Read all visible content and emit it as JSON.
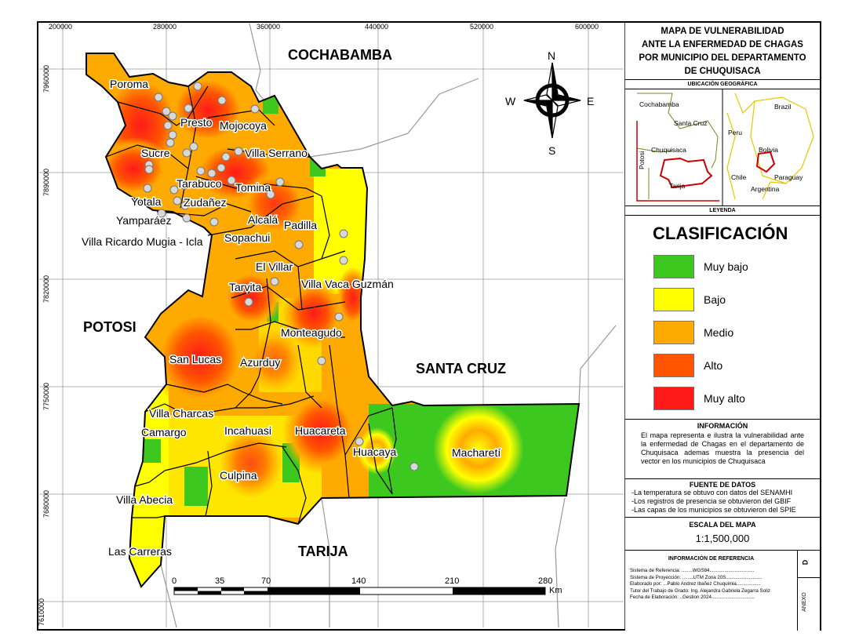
{
  "coords": {
    "top": [
      "200000",
      "280000",
      "360000",
      "440000",
      "520000",
      "600000"
    ],
    "left": [
      "7960000",
      "7890000",
      "7820000",
      "7750000",
      "7680000",
      "7610000"
    ]
  },
  "neighbors": {
    "cochabamba": "COCHABAMBA",
    "potosi": "POTOSI",
    "santa_cruz": "SANTA CRUZ",
    "tarija": "TARIJA"
  },
  "municipios": [
    "Poroma",
    "Presto",
    "Mojocoya",
    "Sucre",
    "Villa Serrano",
    "Tarabuco",
    "Tomina",
    "Yotala",
    "Zudañez",
    "Yamparáez",
    "Alcalá",
    "Padilla",
    "Villa Ricardo Mugia - Icla",
    "Sopachui",
    "El Villar",
    "Tarvita",
    "Villa Vaca Guzmán",
    "Monteagudo",
    "San Lucas",
    "Azurduy",
    "Villa Charcas",
    "Camargo",
    "Incahuasi",
    "Huacareta",
    "Huacaya",
    "Macharetí",
    "Culpina",
    "Villa Abecia",
    "Las Carreras"
  ],
  "compass": {
    "n": "N",
    "s": "S",
    "e": "E",
    "w": "W"
  },
  "scalebar": {
    "ticks": [
      "0",
      "35",
      "70",
      "140",
      "210",
      "280"
    ],
    "unit": "Km"
  },
  "title": [
    "MAPA DE VULNERABILIDAD",
    "ANTE LA ENFERMEDAD DE CHAGAS",
    "POR MUNICIPIO DEL DEPARTAMENTO",
    "DE CHUQUISACA"
  ],
  "location": {
    "header": "UBICACIÓN GEOGRÁFICA",
    "dept_labels": {
      "cochabamba": "Cochabamba",
      "santa_cruz": "Santa Cruz",
      "chuquisaca": "Chuquisaca",
      "potosi": "Potosi",
      "tarija": "Tarija"
    },
    "country_labels": {
      "brazil": "Brazil",
      "peru": "Peru",
      "bolivia": "Bolivia",
      "chile": "Chile",
      "paraguay": "Paraguay",
      "argentina": "Argentina"
    }
  },
  "legend": {
    "header": "LEYENDA",
    "title": "CLASIFICACIÓN",
    "items": [
      {
        "label": "Muy bajo",
        "color": "#3cc81e"
      },
      {
        "label": "Bajo",
        "color": "#ffff00"
      },
      {
        "label": "Medio",
        "color": "#ffaa00"
      },
      {
        "label": "Alto",
        "color": "#ff5500"
      },
      {
        "label": "Muy alto",
        "color": "#ff1a1a"
      }
    ]
  },
  "info": {
    "title": "INFORMACIÓN",
    "text": "El mapa representa e ilustra la vulnerabilidad ante la enfermedad de Chagas en el departamento de Chuquisaca ademas muestra la presencia del vector en los municipios de Chuquisaca"
  },
  "fuente": {
    "title": "FUENTE DE DATOS",
    "lines": [
      "-La temperatura se obtuvo con datos del SENAMHI",
      "-Los registros de presencia se obtuvieron del GBIF",
      "-Las capas de los municipios se obtuvieron del SPIE"
    ]
  },
  "escala": {
    "title": "ESCALA DEL MAPA",
    "value": "1:1,500,000"
  },
  "reference": {
    "title": "INFORMACIÓN DE REFERENCIA",
    "lines": [
      "Sistema de Referencia: ........WGS84.................................",
      "Sistema de Proyección: ........UTM Zona 20S...........................",
      "Elaborado por: ...Pablo Andrez Ibañez Chuquimia..................",
      "Tutor del Trabajo de Grado: Ing. Alejandra Gabriela Zegarra Soliz",
      "Fecha de Elaboración: ..Gestion 2024................................"
    ],
    "sheet": "D",
    "annex": "ANEXO"
  }
}
